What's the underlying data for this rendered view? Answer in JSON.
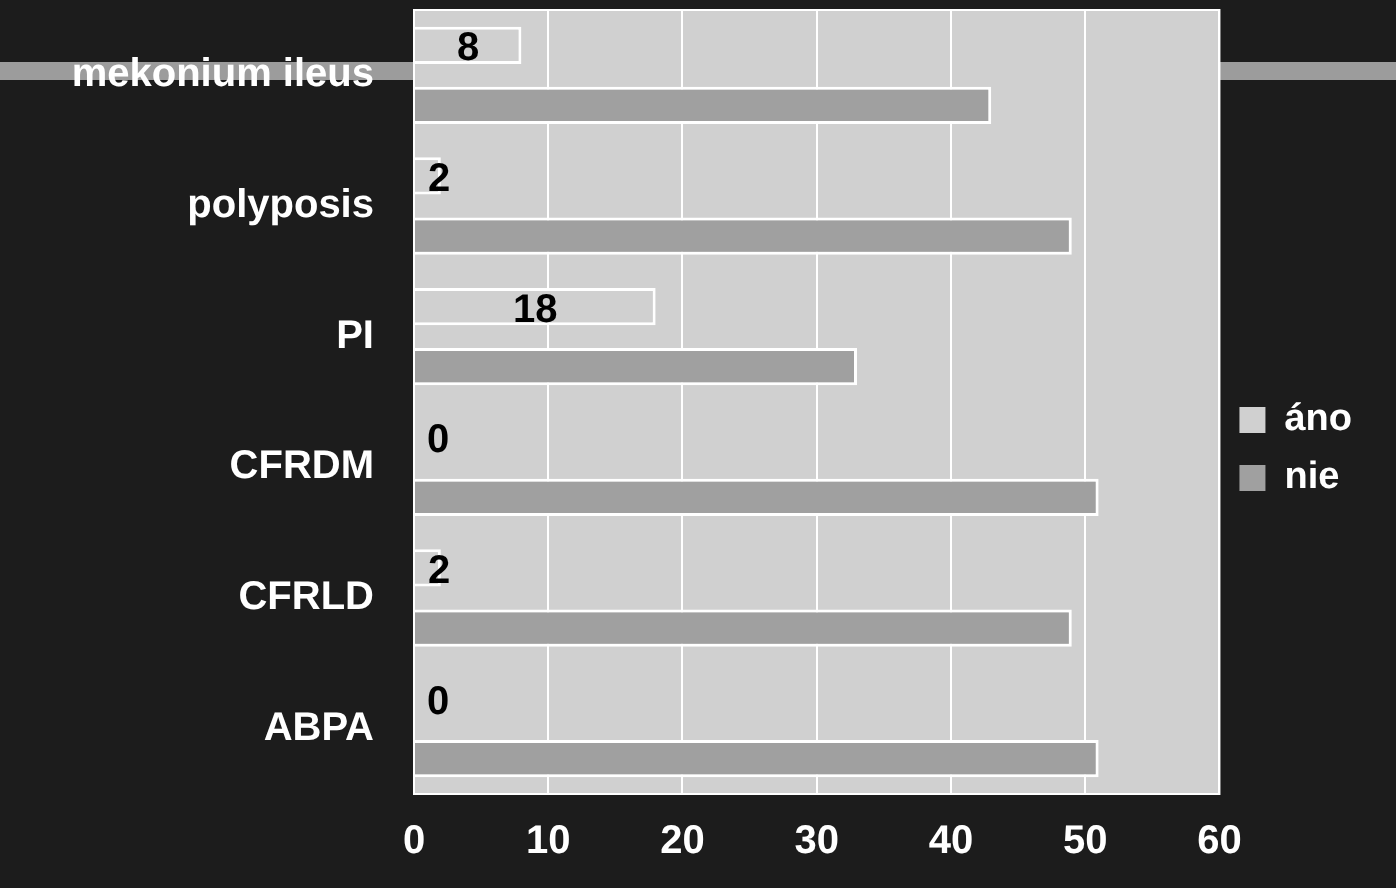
{
  "chart_data": {
    "type": "bar",
    "orientation": "horizontal",
    "categories": [
      "mekonium ileus",
      "polyposis",
      "PI",
      "CFRDM",
      "CFRLD",
      "ABPA"
    ],
    "series": [
      {
        "name": "áno",
        "color": "#d0d0d0",
        "values": [
          8,
          2,
          18,
          0,
          2,
          0
        ],
        "value_labels": [
          "8",
          "2",
          "18",
          "0",
          "2",
          "0"
        ]
      },
      {
        "name": "nie",
        "color": "#a0a0a0",
        "values": [
          43,
          49,
          33,
          51,
          49,
          51
        ]
      }
    ],
    "xlim": [
      0,
      60
    ],
    "xticks": [
      0,
      10,
      20,
      30,
      40,
      50,
      60
    ],
    "grid": "x",
    "legend": "right"
  }
}
